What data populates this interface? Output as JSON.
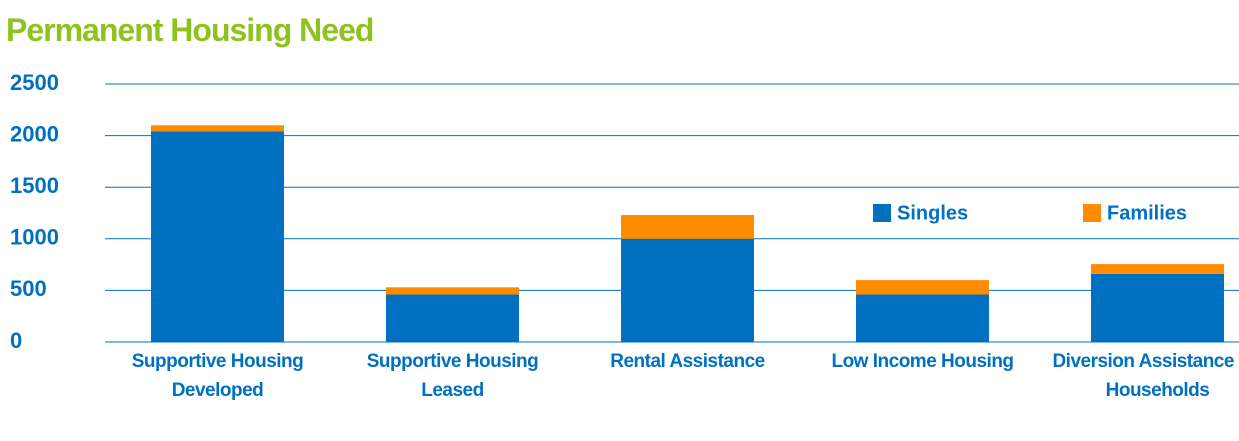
{
  "chart_data": {
    "type": "stacked_bar",
    "title": "Permanent Housing Need",
    "categories": [
      "Supportive Housing Developed",
      "Supportive Housing Leased",
      "Rental Assistance",
      "Low Income Housing",
      "Diversion Assistance for Households"
    ],
    "series": [
      {
        "name": "Singles",
        "color": "#0070c0",
        "values": [
          2040,
          460,
          1000,
          460,
          660
        ]
      },
      {
        "name": "Families",
        "color": "#ff8c00",
        "values": [
          60,
          70,
          230,
          140,
          95
        ]
      }
    ],
    "ylim": [
      0,
      2500
    ],
    "yticks": [
      0,
      500,
      1000,
      1500,
      2000,
      2500
    ],
    "grid": true,
    "legend": "right"
  }
}
